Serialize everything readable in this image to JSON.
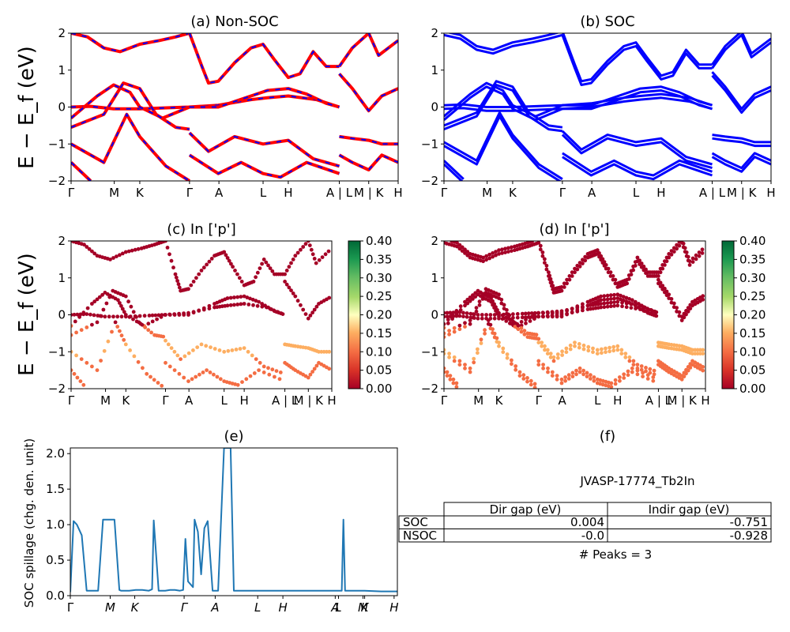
{
  "figure": {
    "ylabel_band": "E − E_f (eV)",
    "colors": {
      "red": "#ff0000",
      "blue": "#0000ff",
      "spill": "#1f77b4",
      "frame": "#000000"
    }
  },
  "chart_data": [
    {
      "id": "a",
      "type": "line",
      "title": "(a) Non-SOC",
      "ylabel": "E − E_f (eV)",
      "ylim": [
        -2,
        2
      ],
      "yticks": [
        "2",
        "1",
        "0",
        "−1",
        "−2"
      ],
      "kpath": [
        {
          "label": "Γ",
          "k": 0.0
        },
        {
          "label": "M",
          "k": 0.132
        },
        {
          "label": "K",
          "k": 0.21
        },
        {
          "label": "Γ",
          "k": 0.362
        },
        {
          "label": "A",
          "k": 0.452
        },
        {
          "label": "L",
          "k": 0.587
        },
        {
          "label": "H",
          "k": 0.664
        },
        {
          "label": "A | L",
          "k": 0.82
        },
        {
          "label": "M | K",
          "k": 0.91
        },
        {
          "label": "H",
          "k": 1.0
        }
      ],
      "series": [
        {
          "style": "red-blue-dashed",
          "points": [
            [
              0,
              0
            ],
            [
              0.06,
              0.02
            ],
            [
              0.13,
              -0.05
            ],
            [
              0.21,
              -0.05
            ],
            [
              0.3,
              -0.02
            ],
            [
              0.36,
              0.0
            ],
            [
              0.45,
              0.05
            ],
            [
              0.55,
              0.2
            ],
            [
              0.6,
              0.25
            ],
            [
              0.664,
              0.3
            ],
            [
              0.75,
              0.2
            ],
            [
              0.82,
              0.0
            ]
          ]
        },
        {
          "style": "red-blue-dashed",
          "points": [
            [
              0,
              -0.3
            ],
            [
              0.08,
              0.3
            ],
            [
              0.13,
              0.6
            ],
            [
              0.18,
              0.4
            ],
            [
              0.21,
              0.0
            ],
            [
              0.28,
              -0.3
            ],
            [
              0.362,
              0.0
            ]
          ]
        },
        {
          "style": "red-blue-dashed",
          "points": [
            [
              0,
              -0.55
            ],
            [
              0.1,
              -0.2
            ],
            [
              0.16,
              0.65
            ],
            [
              0.21,
              0.5
            ],
            [
              0.26,
              -0.2
            ],
            [
              0.32,
              -0.55
            ],
            [
              0.362,
              -0.6
            ]
          ]
        },
        {
          "style": "red-blue-dashed",
          "points": [
            [
              0,
              -1.0
            ],
            [
              0.1,
              -1.5
            ],
            [
              0.17,
              -0.2
            ],
            [
              0.21,
              -0.8
            ],
            [
              0.29,
              -1.6
            ],
            [
              0.362,
              -2.0
            ]
          ]
        },
        {
          "style": "red-blue-dashed",
          "points": [
            [
              0,
              -1.5
            ],
            [
              0.06,
              -2.0
            ]
          ]
        },
        {
          "style": "red-blue-dashed",
          "points": [
            [
              0.362,
              0.0
            ],
            [
              0.45,
              0.0
            ],
            [
              0.55,
              0.3
            ],
            [
              0.6,
              0.45
            ],
            [
              0.664,
              0.5
            ],
            [
              0.72,
              0.35
            ],
            [
              0.78,
              0.1
            ],
            [
              0.82,
              0.0
            ]
          ]
        },
        {
          "style": "red-blue-dashed",
          "points": [
            [
              0.362,
              -0.7
            ],
            [
              0.42,
              -1.2
            ],
            [
              0.5,
              -0.8
            ],
            [
              0.587,
              -1.0
            ],
            [
              0.664,
              -0.9
            ],
            [
              0.74,
              -1.4
            ],
            [
              0.82,
              -1.6
            ]
          ]
        },
        {
          "style": "red-blue-dashed",
          "points": [
            [
              0.362,
              -1.3
            ],
            [
              0.45,
              -1.8
            ],
            [
              0.52,
              -1.5
            ],
            [
              0.587,
              -1.8
            ],
            [
              0.64,
              -1.9
            ],
            [
              0.72,
              -1.5
            ],
            [
              0.82,
              -1.8
            ]
          ]
        },
        {
          "style": "red-blue-dashed",
          "points": [
            [
              0,
              2.0
            ],
            [
              0.05,
              1.9
            ],
            [
              0.1,
              1.6
            ],
            [
              0.15,
              1.5
            ],
            [
              0.21,
              1.7
            ],
            [
              0.27,
              1.8
            ],
            [
              0.32,
              1.9
            ],
            [
              0.362,
              2.0
            ]
          ]
        },
        {
          "style": "red-blue-dashed",
          "points": [
            [
              0.362,
              2.0
            ],
            [
              0.4,
              1.1
            ],
            [
              0.42,
              0.65
            ],
            [
              0.45,
              0.7
            ],
            [
              0.5,
              1.2
            ],
            [
              0.55,
              1.6
            ],
            [
              0.587,
              1.7
            ],
            [
              0.62,
              1.3
            ],
            [
              0.664,
              0.8
            ],
            [
              0.7,
              0.9
            ],
            [
              0.74,
              1.5
            ],
            [
              0.78,
              1.1
            ],
            [
              0.82,
              1.1
            ]
          ]
        },
        {
          "style": "red-blue-dashed",
          "points": [
            [
              0.82,
              1.1
            ],
            [
              0.86,
              1.6
            ],
            [
              0.91,
              2.0
            ],
            [
              0.94,
              1.4
            ],
            [
              1.0,
              1.8
            ]
          ]
        },
        {
          "style": "red-blue-dashed",
          "points": [
            [
              0.82,
              0.9
            ],
            [
              0.86,
              0.5
            ],
            [
              0.91,
              -0.1
            ],
            [
              0.95,
              0.3
            ],
            [
              1.0,
              0.5
            ]
          ]
        },
        {
          "style": "red-blue-dashed",
          "points": [
            [
              0.82,
              -0.8
            ],
            [
              0.86,
              -0.85
            ],
            [
              0.91,
              -0.9
            ],
            [
              0.95,
              -1.0
            ],
            [
              1.0,
              -1.0
            ]
          ]
        },
        {
          "style": "red-blue-dashed",
          "points": [
            [
              0.82,
              -1.3
            ],
            [
              0.86,
              -1.5
            ],
            [
              0.91,
              -1.7
            ],
            [
              0.95,
              -1.3
            ],
            [
              1.0,
              -1.5
            ]
          ]
        }
      ]
    },
    {
      "id": "b",
      "type": "line",
      "title": "(b) SOC",
      "ylim": [
        -2,
        2
      ],
      "yticks": [
        "2",
        "1",
        "0",
        "−1",
        "−2"
      ],
      "series_color": "#0000ff"
    },
    {
      "id": "c",
      "type": "scatter",
      "title": "(c)  In ['p']",
      "ylabel": "E − E_f (eV)",
      "ylim": [
        -2,
        2
      ],
      "yticks": [
        "2",
        "1",
        "0",
        "−1",
        "−2"
      ],
      "colorbar": {
        "min": 0.0,
        "max": 0.4,
        "ticks": [
          "0.40",
          "0.35",
          "0.30",
          "0.25",
          "0.20",
          "0.15",
          "0.10",
          "0.05",
          "0.00"
        ],
        "cmap": "RdYlGn"
      }
    },
    {
      "id": "d",
      "type": "scatter",
      "title": "(d) In ['p']",
      "ylim": [
        -2,
        2
      ],
      "yticks": [
        "2",
        "1",
        "0",
        "−1",
        "−2"
      ],
      "colorbar": {
        "min": 0.0,
        "max": 0.4,
        "ticks": [
          "0.40",
          "0.35",
          "0.30",
          "0.25",
          "0.20",
          "0.15",
          "0.10",
          "0.05",
          "0.00"
        ],
        "cmap": "RdYlGn"
      }
    },
    {
      "id": "e",
      "type": "line",
      "title": "(e)",
      "ylabel": "SOC spillage (chg. den. unit)",
      "ylim": [
        0,
        2.08
      ],
      "yticks": [
        "2.0",
        "1.5",
        "1.0",
        "0.5",
        "0.0"
      ],
      "xticks": [
        "Γ",
        "M",
        "K",
        "Γ",
        "A",
        "L",
        "H",
        "A",
        "L",
        "M",
        "K",
        "H"
      ],
      "x": [
        0.0,
        0.01,
        0.02,
        0.035,
        0.05,
        0.07,
        0.085,
        0.1,
        0.105,
        0.12,
        0.135,
        0.15,
        0.155,
        0.18,
        0.2,
        0.22,
        0.24,
        0.25,
        0.255,
        0.27,
        0.28,
        0.29,
        0.305,
        0.32,
        0.335,
        0.345,
        0.352,
        0.36,
        0.375,
        0.38,
        0.39,
        0.4,
        0.41,
        0.42,
        0.435,
        0.445,
        0.452,
        0.47,
        0.49,
        0.5,
        0.6,
        0.7,
        0.8,
        0.82,
        0.825,
        0.83,
        0.835,
        0.84,
        0.85,
        0.9,
        0.95,
        1.0
      ],
      "values": [
        0.05,
        1.05,
        1.0,
        0.85,
        0.07,
        0.07,
        0.07,
        1.07,
        1.07,
        1.07,
        1.07,
        0.08,
        0.07,
        0.07,
        0.08,
        0.08,
        0.07,
        0.09,
        1.06,
        0.07,
        0.07,
        0.07,
        0.08,
        0.08,
        0.07,
        0.08,
        0.8,
        0.2,
        0.12,
        1.07,
        0.9,
        0.3,
        0.95,
        1.05,
        0.07,
        0.07,
        0.07,
        2.08,
        2.08,
        0.07,
        0.07,
        0.07,
        0.07,
        0.07,
        0.07,
        0.07,
        1.07,
        0.07,
        0.07,
        0.07,
        0.06,
        0.06
      ]
    }
  ],
  "panel_f": {
    "title": "(f)",
    "material": "JVASP-17774_Tb2In",
    "table": {
      "columns": [
        "Dir gap (eV)",
        "Indir gap (eV)"
      ],
      "rows": [
        {
          "label": "SOC",
          "values": [
            "0.004",
            "-0.751"
          ]
        },
        {
          "label": "NSOC",
          "values": [
            "-0.0",
            "-0.928"
          ]
        }
      ]
    },
    "peaks": "# Peaks = 3"
  }
}
